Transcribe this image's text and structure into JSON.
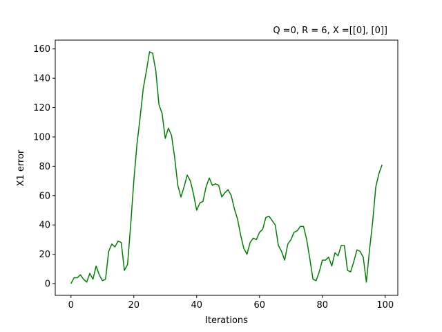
{
  "chart_data": {
    "type": "line",
    "title": "Q =0, R = 6, X =[[0], [0]]",
    "xlabel": "Iterations",
    "ylabel": "X1 error",
    "xlim": [
      -5,
      104
    ],
    "ylim": [
      -8,
      166
    ],
    "xticks": [
      0,
      20,
      40,
      60,
      80,
      100
    ],
    "yticks": [
      0,
      20,
      40,
      60,
      80,
      100,
      120,
      140,
      160
    ],
    "grid": false,
    "series": [
      {
        "color": "#008000",
        "x": [
          0,
          1,
          2,
          3,
          4,
          5,
          6,
          7,
          8,
          9,
          10,
          11,
          12,
          13,
          14,
          15,
          16,
          17,
          18,
          19,
          20,
          21,
          22,
          23,
          24,
          25,
          26,
          27,
          28,
          29,
          30,
          31,
          32,
          33,
          34,
          35,
          36,
          37,
          38,
          39,
          40,
          41,
          42,
          43,
          44,
          45,
          46,
          47,
          48,
          49,
          50,
          51,
          52,
          53,
          54,
          55,
          56,
          57,
          58,
          59,
          60,
          61,
          62,
          63,
          64,
          65,
          66,
          67,
          68,
          69,
          70,
          71,
          72,
          73,
          74,
          75,
          76,
          77,
          78,
          79,
          80,
          81,
          82,
          83,
          84,
          85,
          86,
          87,
          88,
          89,
          90,
          91,
          92,
          93,
          94,
          95,
          96,
          97,
          98,
          99
        ],
        "values": [
          0,
          4,
          4,
          6,
          3,
          1,
          7,
          3,
          12,
          6,
          2,
          3,
          22,
          27,
          25,
          29,
          28,
          9,
          13,
          40,
          70,
          95,
          113,
          133,
          145,
          158,
          157,
          145,
          122,
          116,
          99,
          106,
          101,
          86,
          67,
          59,
          66,
          74,
          70,
          61,
          50,
          55,
          56,
          66,
          72,
          67,
          68,
          67,
          59,
          62,
          64,
          60,
          51,
          44,
          33,
          24,
          20,
          28,
          31,
          30,
          35,
          37,
          45,
          46,
          43,
          40,
          26,
          22,
          16,
          27,
          30,
          35,
          36,
          39,
          39,
          30,
          17,
          3,
          2,
          8,
          16,
          16,
          18,
          12,
          21,
          19,
          26,
          26,
          9,
          8,
          15,
          23,
          22,
          18,
          1,
          23,
          42,
          66,
          75,
          81
        ]
      }
    ]
  }
}
